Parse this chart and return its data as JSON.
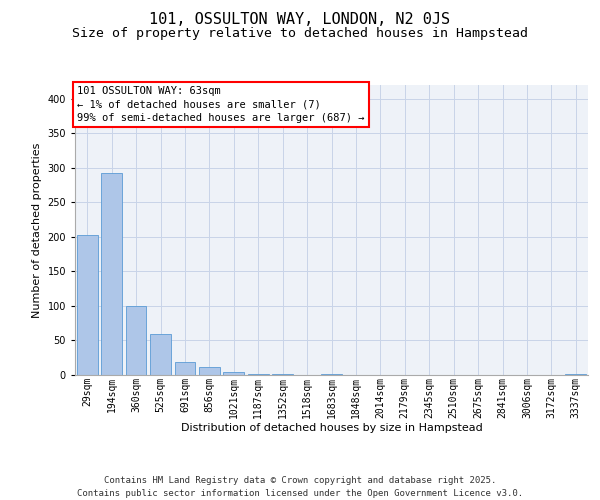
{
  "title_line1": "101, OSSULTON WAY, LONDON, N2 0JS",
  "title_line2": "Size of property relative to detached houses in Hampstead",
  "xlabel": "Distribution of detached houses by size in Hampstead",
  "ylabel": "Number of detached properties",
  "categories": [
    "29sqm",
    "194sqm",
    "360sqm",
    "525sqm",
    "691sqm",
    "856sqm",
    "1021sqm",
    "1187sqm",
    "1352sqm",
    "1518sqm",
    "1683sqm",
    "1848sqm",
    "2014sqm",
    "2179sqm",
    "2345sqm",
    "2510sqm",
    "2675sqm",
    "2841sqm",
    "3006sqm",
    "3172sqm",
    "3337sqm"
  ],
  "values": [
    203,
    293,
    100,
    60,
    19,
    12,
    5,
    2,
    1,
    0,
    1,
    0,
    0,
    0,
    0,
    0,
    0,
    0,
    0,
    0,
    1
  ],
  "bar_color": "#aec6e8",
  "bar_edge_color": "#5b9bd5",
  "annotation_box_text": "101 OSSULTON WAY: 63sqm\n← 1% of detached houses are smaller (7)\n99% of semi-detached houses are larger (687) →",
  "annotation_box_color": "#ff0000",
  "ylim": [
    0,
    420
  ],
  "yticks": [
    0,
    50,
    100,
    150,
    200,
    250,
    300,
    350,
    400
  ],
  "grid_color": "#c8d4e8",
  "background_color": "#eef2f8",
  "footer_text": "Contains HM Land Registry data © Crown copyright and database right 2025.\nContains public sector information licensed under the Open Government Licence v3.0.",
  "title_fontsize": 11,
  "subtitle_fontsize": 9.5,
  "xlabel_fontsize": 8,
  "ylabel_fontsize": 8,
  "tick_fontsize": 7,
  "annotation_fontsize": 7.5,
  "footer_fontsize": 6.5
}
